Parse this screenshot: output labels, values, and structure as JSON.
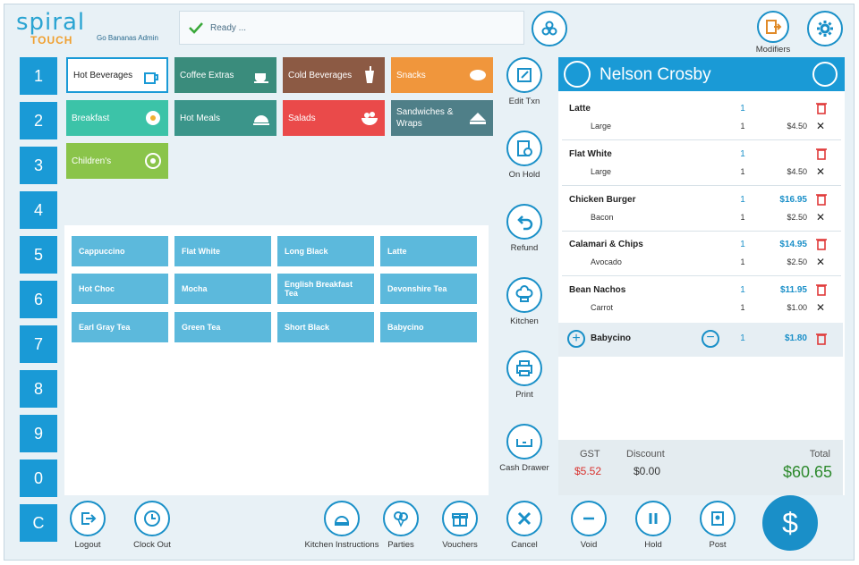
{
  "app": {
    "logo_top": "spiral",
    "logo_bottom": "TOUCH",
    "admin_label": "Go Bananas Admin",
    "status": "Ready ..."
  },
  "top_buttons": {
    "modifiers": "Modifiers"
  },
  "num_keys": [
    "1",
    "2",
    "3",
    "4",
    "5",
    "6",
    "7",
    "8",
    "9",
    "0",
    "C"
  ],
  "categories": [
    {
      "label": "Hot Beverages",
      "color": "#ffffff",
      "icon": "cup-icon"
    },
    {
      "label": "Coffee Extras",
      "color": "#3a8c7c",
      "icon": "coffee-cup-icon"
    },
    {
      "label": "Cold Beverages",
      "color": "#8c5a44",
      "icon": "iced-drink-icon"
    },
    {
      "label": "Snacks",
      "color": "#f0963c",
      "icon": "snack-icon"
    },
    {
      "label": "Breakfast",
      "color": "#3cc3a8",
      "icon": "breakfast-icon"
    },
    {
      "label": "Hot Meals",
      "color": "#3b958a",
      "icon": "cloche-icon"
    },
    {
      "label": "Salads",
      "color": "#ea4a4a",
      "icon": "salad-icon"
    },
    {
      "label": "Sandwiches & Wraps",
      "color": "#4f7f88",
      "icon": "sandwich-icon"
    },
    {
      "label": "Children's",
      "color": "#8ac44a",
      "icon": "kids-meal-icon"
    }
  ],
  "items": [
    "Cappuccino",
    "Flat White",
    "Long Black",
    "Latte",
    "Hot Choc",
    "Mocha",
    "English Breakfast Tea",
    "Devonshire Tea",
    "Earl Gray Tea",
    "Green Tea",
    "Short Black",
    "Babycino"
  ],
  "side_actions": [
    "Edit Txn",
    "On Hold",
    "Refund",
    "Kitchen",
    "Print",
    "Cash Drawer"
  ],
  "customer": {
    "name": "Nelson Crosby"
  },
  "order_lines": [
    {
      "name": "Latte",
      "qty": "1",
      "price": "",
      "sub": "Large",
      "sub_qty": "1",
      "sub_price": "$4.50"
    },
    {
      "name": "Flat White",
      "qty": "1",
      "price": "",
      "sub": "Large",
      "sub_qty": "1",
      "sub_price": "$4.50"
    },
    {
      "name": "Chicken Burger",
      "qty": "1",
      "price": "$16.95",
      "sub": "Bacon",
      "sub_qty": "1",
      "sub_price": "$2.50"
    },
    {
      "name": "Calamari & Chips",
      "qty": "1",
      "price": "$14.95",
      "sub": "Avocado",
      "sub_qty": "1",
      "sub_price": "$2.50"
    },
    {
      "name": "Bean Nachos",
      "qty": "1",
      "price": "$11.95",
      "sub": "Carrot",
      "sub_qty": "1",
      "sub_price": "$1.00"
    }
  ],
  "selected_line": {
    "name": "Babycino",
    "qty": "1",
    "price": "$1.80"
  },
  "totals": {
    "gst_label": "GST",
    "gst": "$5.52",
    "discount_label": "Discount",
    "discount": "$0.00",
    "total_label": "Total",
    "total": "$60.65"
  },
  "bottom": {
    "logout": "Logout",
    "clock_out": "Clock Out",
    "kitchen_instructions": "Kitchen Instructions",
    "parties": "Parties",
    "vouchers": "Vouchers",
    "cancel": "Cancel",
    "void": "Void",
    "hold": "Hold",
    "post": "Post",
    "pay_symbol": "$"
  },
  "colors": {
    "accent": "#1a9ad6",
    "item_tile": "#5cb9dc",
    "gst": "#d9302c",
    "total": "#2e8a2e"
  }
}
